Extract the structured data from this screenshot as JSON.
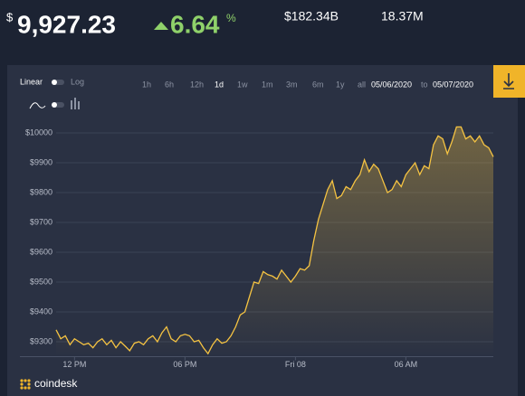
{
  "header": {
    "currency": "$",
    "price": "9,927.23",
    "change": "6.64",
    "change_unit": "%",
    "market_cap": "$182.34B",
    "supply": "18.37M"
  },
  "controls": {
    "scale_linear": "Linear",
    "scale_log": "Log",
    "ranges": [
      "1h",
      "6h",
      "12h",
      "1d",
      "1w",
      "1m",
      "3m",
      "6m",
      "1y",
      "all"
    ],
    "date_from": "05/06/2020",
    "date_sep": "to",
    "date_to": "05/07/2020"
  },
  "footer": {
    "brand": "coindesk"
  },
  "chart_data": {
    "type": "line",
    "color": "#f5c342",
    "grid": true,
    "xlim": [
      0,
      95
    ],
    "ylim": [
      9250,
      10060
    ],
    "xticks": [
      {
        "value": 4,
        "label": "12 PM"
      },
      {
        "value": 28,
        "label": "06 PM"
      },
      {
        "value": 52,
        "label": "Fri 08"
      },
      {
        "value": 76,
        "label": "06 AM"
      }
    ],
    "yticks": [
      {
        "value": 9300,
        "label": "$9300"
      },
      {
        "value": 9400,
        "label": "$9400"
      },
      {
        "value": 9500,
        "label": "$9500"
      },
      {
        "value": 9600,
        "label": "$9600"
      },
      {
        "value": 9700,
        "label": "$9700"
      },
      {
        "value": 9800,
        "label": "$9800"
      },
      {
        "value": 9900,
        "label": "$9900"
      },
      {
        "value": 10000,
        "label": "$10000"
      }
    ],
    "values": [
      9340,
      9310,
      9320,
      9290,
      9310,
      9300,
      9290,
      9295,
      9280,
      9300,
      9310,
      9290,
      9305,
      9280,
      9300,
      9285,
      9270,
      9295,
      9300,
      9290,
      9310,
      9320,
      9300,
      9330,
      9350,
      9310,
      9300,
      9320,
      9325,
      9320,
      9300,
      9305,
      9280,
      9260,
      9290,
      9310,
      9295,
      9300,
      9320,
      9350,
      9390,
      9400,
      9450,
      9500,
      9495,
      9535,
      9525,
      9520,
      9510,
      9540,
      9520,
      9500,
      9520,
      9545,
      9540,
      9555,
      9640,
      9710,
      9760,
      9810,
      9840,
      9780,
      9790,
      9820,
      9810,
      9840,
      9860,
      9910,
      9870,
      9895,
      9880,
      9840,
      9800,
      9810,
      9840,
      9820,
      9860,
      9880,
      9900,
      9860,
      9890,
      9880,
      9960,
      9990,
      9980,
      9930,
      9970,
      10020,
      10020,
      9980,
      9990,
      9970,
      9990,
      9960,
      9950,
      9920
    ]
  }
}
